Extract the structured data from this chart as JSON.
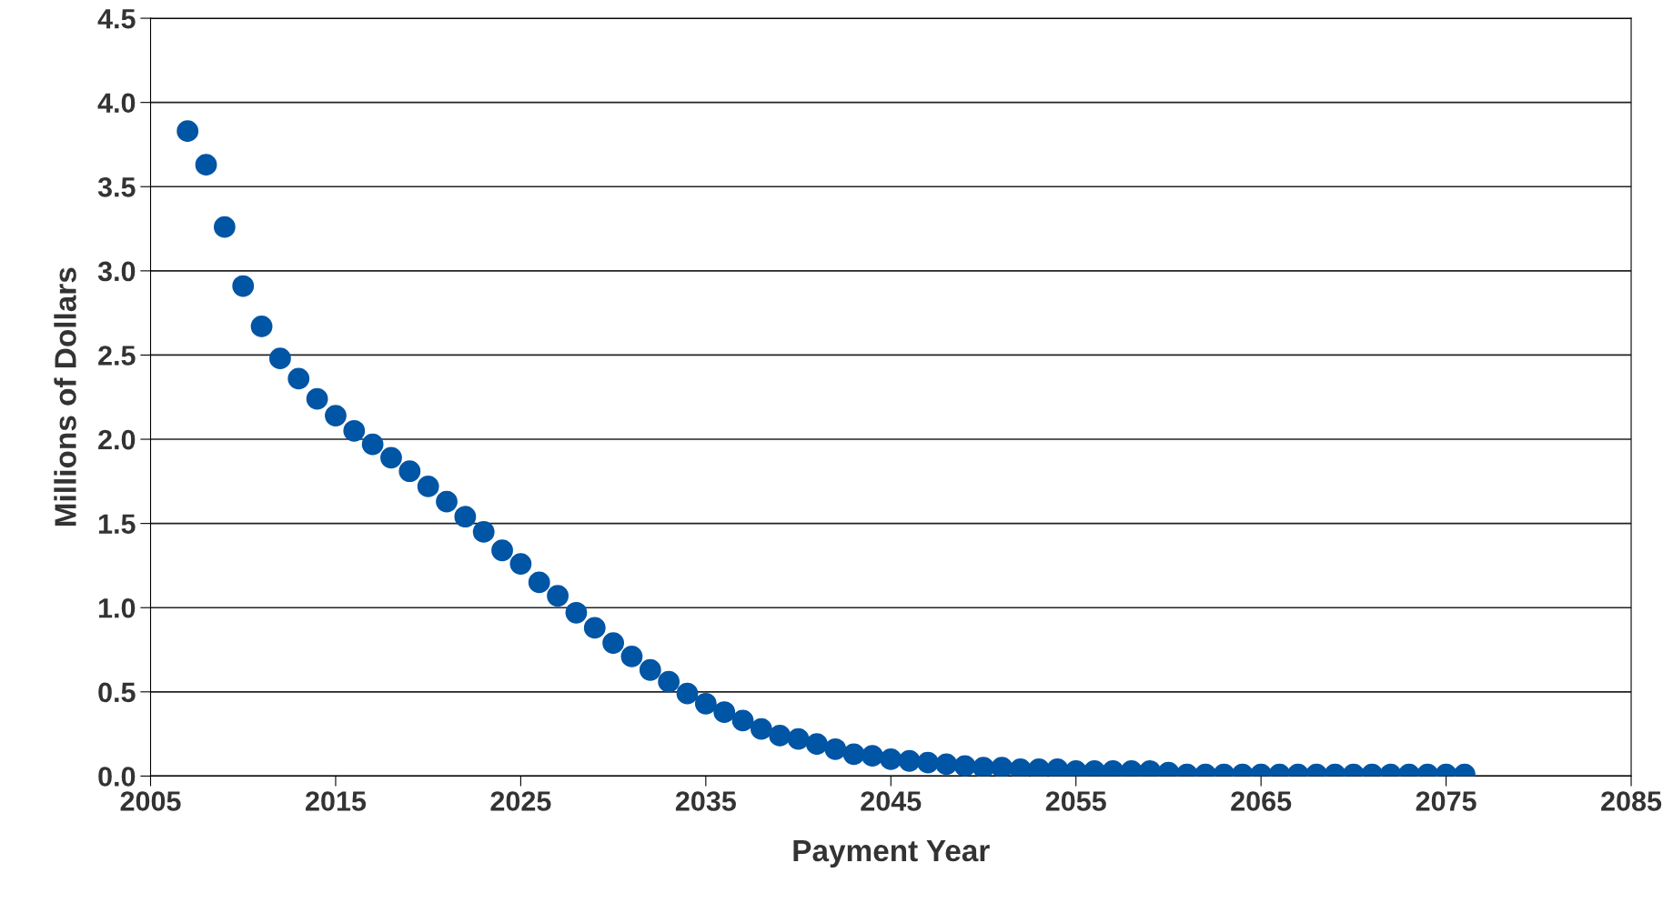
{
  "chart_data": {
    "type": "scatter",
    "xlabel": "Payment Year",
    "ylabel": "Millions of Dollars",
    "x": [
      2007,
      2008,
      2009,
      2010,
      2011,
      2012,
      2013,
      2014,
      2015,
      2016,
      2017,
      2018,
      2019,
      2020,
      2021,
      2022,
      2023,
      2024,
      2025,
      2026,
      2027,
      2028,
      2029,
      2030,
      2031,
      2032,
      2033,
      2034,
      2035,
      2036,
      2037,
      2038,
      2039,
      2040,
      2041,
      2042,
      2043,
      2044,
      2045,
      2046,
      2047,
      2048,
      2049,
      2050,
      2051,
      2052,
      2053,
      2054,
      2055,
      2056,
      2057,
      2058,
      2059,
      2060,
      2061,
      2062,
      2063,
      2064,
      2065,
      2066,
      2067,
      2068,
      2069,
      2070,
      2071,
      2072,
      2073,
      2074,
      2075,
      2076
    ],
    "series": [
      {
        "color": "#0055a5",
        "values": [
          3.83,
          3.63,
          3.26,
          2.91,
          2.67,
          2.48,
          2.36,
          2.24,
          2.14,
          2.05,
          1.97,
          1.89,
          1.81,
          1.72,
          1.63,
          1.54,
          1.45,
          1.34,
          1.26,
          1.15,
          1.07,
          0.97,
          0.88,
          0.79,
          0.71,
          0.63,
          0.56,
          0.49,
          0.43,
          0.38,
          0.33,
          0.28,
          0.24,
          0.22,
          0.19,
          0.16,
          0.13,
          0.12,
          0.1,
          0.09,
          0.08,
          0.07,
          0.06,
          0.05,
          0.05,
          0.04,
          0.04,
          0.04,
          0.03,
          0.03,
          0.03,
          0.03,
          0.03,
          0.02,
          0.01,
          0.01,
          0.01,
          0.01,
          0.01,
          0.01,
          0.01,
          0.01,
          0.01,
          0.01,
          0.01,
          0.01,
          0.01,
          0.01,
          0.01,
          0.01
        ]
      }
    ],
    "xlim": [
      2005,
      2085
    ],
    "xticks": [
      2005,
      2015,
      2025,
      2035,
      2045,
      2055,
      2065,
      2075,
      2085
    ],
    "ylim": [
      0,
      4.5
    ],
    "yticks": [
      {
        "value": 0,
        "label": "0.0"
      },
      {
        "value": 0.5,
        "label": "0.5"
      },
      {
        "value": 1,
        "label": "1.0"
      },
      {
        "value": 1.5,
        "label": "1.5"
      },
      {
        "value": 2,
        "label": "2.0"
      },
      {
        "value": 2.5,
        "label": "2.5"
      },
      {
        "value": 3,
        "label": "3.0"
      },
      {
        "value": 3.5,
        "label": "3.5"
      },
      {
        "value": 4,
        "label": "4.0"
      },
      {
        "value": 4.5,
        "label": "4.5"
      }
    ],
    "grid": "y",
    "marker": "circle",
    "legend": false
  }
}
